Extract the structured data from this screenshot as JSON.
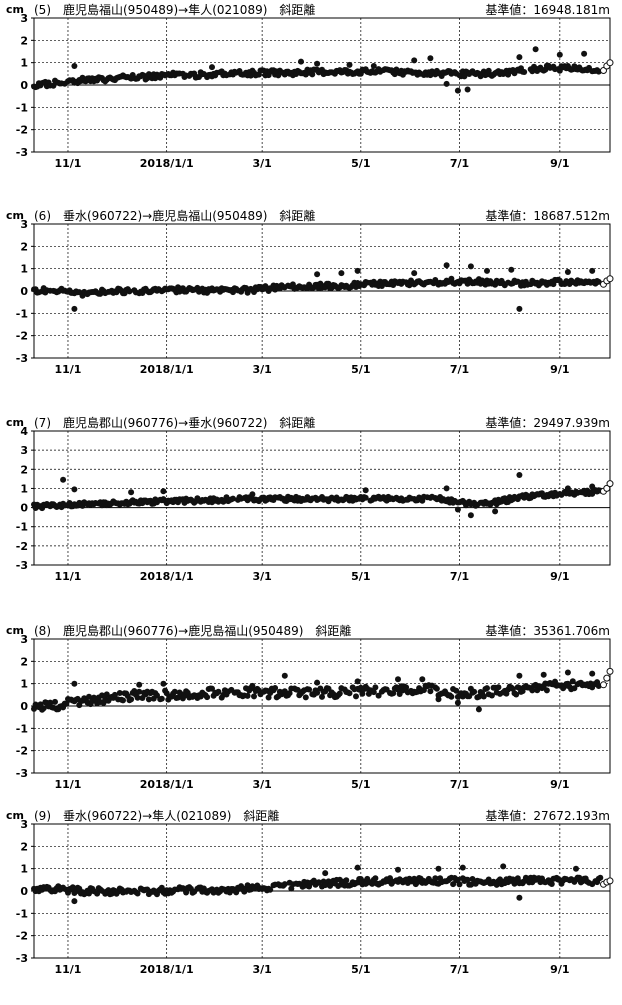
{
  "chart_data": [
    {
      "type": "scatter",
      "unit": "cm",
      "label": "(5)　鹿児島福山(950489)→隼人(021089)　斜距離",
      "reference": "基準値：16948.181m",
      "ylim": [
        -3,
        3
      ],
      "yticks": [
        "3",
        "2",
        "1",
        "0",
        "-1",
        "-2",
        "-3"
      ],
      "xticks": [
        "11/1",
        "2018/1/1",
        "3/1",
        "5/1",
        "7/1",
        "9/1"
      ],
      "grid": true,
      "trend": [
        [
          0,
          0.0
        ],
        [
          8,
          0.05
        ],
        [
          20,
          0.15
        ],
        [
          35,
          0.25
        ],
        [
          52,
          0.3
        ],
        [
          68,
          0.35
        ],
        [
          82,
          0.45
        ],
        [
          100,
          0.45
        ],
        [
          120,
          0.5
        ],
        [
          140,
          0.55
        ],
        [
          160,
          0.55
        ],
        [
          180,
          0.6
        ],
        [
          200,
          0.6
        ],
        [
          220,
          0.6
        ],
        [
          240,
          0.55
        ],
        [
          260,
          0.5
        ],
        [
          275,
          0.5
        ],
        [
          290,
          0.55
        ],
        [
          300,
          0.65
        ],
        [
          315,
          0.75
        ],
        [
          330,
          0.75
        ],
        [
          345,
          0.7
        ],
        [
          356,
          0.7
        ]
      ],
      "spread": 0.12,
      "outliers": [
        [
          25,
          0.85
        ],
        [
          110,
          0.8
        ],
        [
          165,
          1.05
        ],
        [
          175,
          0.95
        ],
        [
          195,
          0.9
        ],
        [
          210,
          0.85
        ],
        [
          235,
          1.1
        ],
        [
          245,
          1.2
        ],
        [
          255,
          0.05
        ],
        [
          262,
          -0.25
        ],
        [
          268,
          -0.2
        ],
        [
          300,
          1.25
        ],
        [
          310,
          1.6
        ],
        [
          325,
          1.35
        ],
        [
          340,
          1.4
        ]
      ],
      "open_points": [
        [
          352,
          0.65
        ],
        [
          354,
          0.85
        ],
        [
          356,
          1.0
        ]
      ]
    },
    {
      "type": "scatter",
      "unit": "cm",
      "label": "(6)　垂水(960722)→鹿児島福山(950489)　斜距離",
      "reference": "基準値：18687.512m",
      "ylim": [
        -3,
        3
      ],
      "yticks": [
        "3",
        "2",
        "1",
        "0",
        "-1",
        "-2",
        "-3"
      ],
      "xticks": [
        "11/1",
        "2018/1/1",
        "3/1",
        "5/1",
        "7/1",
        "9/1"
      ],
      "grid": true,
      "trend": [
        [
          0,
          0.05
        ],
        [
          15,
          0.0
        ],
        [
          30,
          -0.1
        ],
        [
          45,
          0.0
        ],
        [
          60,
          0.0
        ],
        [
          80,
          0.05
        ],
        [
          100,
          0.05
        ],
        [
          120,
          0.0
        ],
        [
          135,
          0.05
        ],
        [
          150,
          0.15
        ],
        [
          170,
          0.2
        ],
        [
          190,
          0.25
        ],
        [
          210,
          0.3
        ],
        [
          230,
          0.35
        ],
        [
          250,
          0.4
        ],
        [
          265,
          0.45
        ],
        [
          280,
          0.4
        ],
        [
          295,
          0.35
        ],
        [
          310,
          0.35
        ],
        [
          325,
          0.4
        ],
        [
          340,
          0.4
        ],
        [
          356,
          0.45
        ]
      ],
      "spread": 0.12,
      "outliers": [
        [
          25,
          -0.8
        ],
        [
          175,
          0.75
        ],
        [
          190,
          0.8
        ],
        [
          200,
          0.9
        ],
        [
          235,
          0.8
        ],
        [
          255,
          1.15
        ],
        [
          270,
          1.1
        ],
        [
          280,
          0.9
        ],
        [
          295,
          0.95
        ],
        [
          300,
          -0.8
        ],
        [
          330,
          0.85
        ],
        [
          345,
          0.9
        ]
      ],
      "open_points": [
        [
          352,
          0.3
        ],
        [
          354,
          0.45
        ],
        [
          356,
          0.55
        ]
      ]
    },
    {
      "type": "scatter",
      "unit": "cm",
      "label": "(7)　鹿児島郡山(960776)→垂水(960722)　斜距離",
      "reference": "基準値：29497.939m",
      "ylim": [
        -3,
        4
      ],
      "yticks": [
        "4",
        "3",
        "2",
        "1",
        "0",
        "-1",
        "-2",
        "-3"
      ],
      "xticks": [
        "11/1",
        "2018/1/1",
        "3/1",
        "5/1",
        "7/1",
        "9/1"
      ],
      "grid": true,
      "trend": [
        [
          0,
          0.05
        ],
        [
          15,
          0.1
        ],
        [
          30,
          0.2
        ],
        [
          50,
          0.25
        ],
        [
          70,
          0.3
        ],
        [
          90,
          0.35
        ],
        [
          110,
          0.4
        ],
        [
          130,
          0.45
        ],
        [
          150,
          0.45
        ],
        [
          170,
          0.45
        ],
        [
          190,
          0.45
        ],
        [
          210,
          0.45
        ],
        [
          230,
          0.45
        ],
        [
          250,
          0.45
        ],
        [
          260,
          0.3
        ],
        [
          270,
          0.2
        ],
        [
          280,
          0.2
        ],
        [
          290,
          0.35
        ],
        [
          300,
          0.55
        ],
        [
          315,
          0.65
        ],
        [
          330,
          0.75
        ],
        [
          345,
          0.8
        ],
        [
          356,
          0.85
        ]
      ],
      "spread": 0.12,
      "outliers": [
        [
          18,
          1.45
        ],
        [
          25,
          0.95
        ],
        [
          60,
          0.8
        ],
        [
          80,
          0.85
        ],
        [
          135,
          0.7
        ],
        [
          205,
          0.9
        ],
        [
          255,
          1.0
        ],
        [
          262,
          -0.1
        ],
        [
          270,
          -0.4
        ],
        [
          285,
          -0.2
        ],
        [
          300,
          1.7
        ],
        [
          330,
          1.0
        ],
        [
          345,
          1.1
        ]
      ],
      "open_points": [
        [
          352,
          0.85
        ],
        [
          354,
          1.0
        ],
        [
          356,
          1.25
        ]
      ]
    },
    {
      "type": "scatter",
      "unit": "cm",
      "label": "(8)　鹿児島郡山(960776)→鹿児島福山(950489)　斜距離",
      "reference": "基準値：35361.706m",
      "ylim": [
        -3,
        3
      ],
      "yticks": [
        "3",
        "2",
        "1",
        "0",
        "-1",
        "-2",
        "-3"
      ],
      "xticks": [
        "11/1",
        "2018/1/1",
        "3/1",
        "5/1",
        "7/1",
        "9/1"
      ],
      "grid": true,
      "trend": [
        [
          0,
          -0.05
        ],
        [
          15,
          0.05
        ],
        [
          30,
          0.2
        ],
        [
          45,
          0.35
        ],
        [
          60,
          0.45
        ],
        [
          80,
          0.5
        ],
        [
          100,
          0.55
        ],
        [
          120,
          0.6
        ],
        [
          140,
          0.6
        ],
        [
          160,
          0.6
        ],
        [
          180,
          0.6
        ],
        [
          200,
          0.65
        ],
        [
          220,
          0.7
        ],
        [
          240,
          0.75
        ],
        [
          260,
          0.6
        ],
        [
          275,
          0.55
        ],
        [
          290,
          0.65
        ],
        [
          305,
          0.8
        ],
        [
          320,
          0.9
        ],
        [
          335,
          0.95
        ],
        [
          350,
          1.0
        ],
        [
          356,
          1.05
        ]
      ],
      "spread": 0.22,
      "outliers": [
        [
          25,
          1.0
        ],
        [
          65,
          0.95
        ],
        [
          80,
          1.0
        ],
        [
          135,
          0.9
        ],
        [
          155,
          1.35
        ],
        [
          175,
          1.05
        ],
        [
          200,
          1.1
        ],
        [
          225,
          1.2
        ],
        [
          240,
          1.2
        ],
        [
          250,
          0.3
        ],
        [
          262,
          0.15
        ],
        [
          275,
          -0.15
        ],
        [
          300,
          1.35
        ],
        [
          315,
          1.4
        ],
        [
          330,
          1.5
        ],
        [
          345,
          1.45
        ]
      ],
      "open_points": [
        [
          352,
          0.95
        ],
        [
          354,
          1.25
        ],
        [
          356,
          1.55
        ]
      ]
    },
    {
      "type": "scatter",
      "unit": "cm",
      "label": "(9)　垂水(960722)→隼人(021089)　斜距離",
      "reference": "基準値：27672.193m",
      "ylim": [
        -3,
        3
      ],
      "yticks": [
        "3",
        "2",
        "1",
        "0",
        "-1",
        "-2",
        "-3"
      ],
      "xticks": [
        "11/1",
        "2018/1/1",
        "3/1",
        "5/1",
        "7/1",
        "9/1"
      ],
      "grid": true,
      "trend": [
        [
          0,
          0.05
        ],
        [
          15,
          0.1
        ],
        [
          30,
          0.0
        ],
        [
          45,
          0.0
        ],
        [
          60,
          -0.05
        ],
        [
          80,
          0.0
        ],
        [
          100,
          0.05
        ],
        [
          120,
          0.05
        ],
        [
          140,
          0.15
        ],
        [
          160,
          0.25
        ],
        [
          180,
          0.35
        ],
        [
          200,
          0.4
        ],
        [
          220,
          0.45
        ],
        [
          240,
          0.45
        ],
        [
          260,
          0.45
        ],
        [
          280,
          0.4
        ],
        [
          300,
          0.45
        ],
        [
          320,
          0.45
        ],
        [
          340,
          0.45
        ],
        [
          356,
          0.45
        ]
      ],
      "spread": 0.15,
      "outliers": [
        [
          25,
          -0.45
        ],
        [
          180,
          0.8
        ],
        [
          200,
          1.05
        ],
        [
          225,
          0.95
        ],
        [
          250,
          1.0
        ],
        [
          265,
          1.05
        ],
        [
          290,
          1.1
        ],
        [
          300,
          -0.3
        ],
        [
          335,
          1.0
        ]
      ],
      "open_points": [
        [
          352,
          0.3
        ],
        [
          354,
          0.4
        ],
        [
          356,
          0.45
        ]
      ]
    }
  ]
}
